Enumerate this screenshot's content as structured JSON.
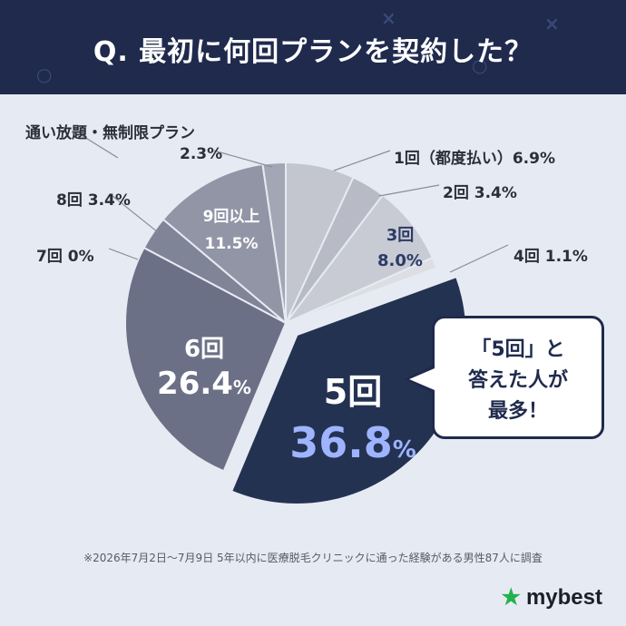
{
  "title": "Q. 最初に何回プランを契約した？",
  "chart_data": {
    "type": "pie",
    "start_angle_deg": 0,
    "slices": [
      {
        "label": "1回（都度払い）",
        "value": 6.9,
        "color": "#c3c6cf",
        "explode": false
      },
      {
        "label": "2回",
        "value": 3.4,
        "color": "#b8bbc5",
        "explode": false
      },
      {
        "label": "3回",
        "value": 8.0,
        "color": "#c8cbd3",
        "explode": false
      },
      {
        "label": "4回",
        "value": 1.1,
        "color": "#dcdee3",
        "explode": false
      },
      {
        "label": "5回",
        "value": 36.8,
        "color": "#243252",
        "explode": true
      },
      {
        "label": "6回",
        "value": 26.4,
        "color": "#6b7086",
        "explode": false
      },
      {
        "label": "7回",
        "value": 0,
        "color": "#6b7086",
        "explode": false
      },
      {
        "label": "8回",
        "value": 3.4,
        "color": "#7f8497",
        "explode": false
      },
      {
        "label": "9回以上",
        "value": 11.5,
        "color": "#9295a6",
        "explode": false
      },
      {
        "label": "通い放題・無制限プラン",
        "value": 2.3,
        "color": "#a3a6b4",
        "explode": false
      }
    ]
  },
  "labels": {
    "outside": {
      "plan_unlimited": "通い放題・無制限プラン",
      "plan_unlimited_pct": "2.3%",
      "once": "1回（都度払い）6.9%",
      "twice": "2回 3.4%",
      "four": "4回 1.1%",
      "eight": "8回 3.4%",
      "seven": "7回 0%"
    },
    "inside": {
      "nine_name": "9回以上",
      "nine_pct": "11.5%",
      "three_name": "3回",
      "three_pct": "8.0%",
      "six_name": "6回",
      "six_pct": "26.4",
      "six_unit": "%",
      "five_name": "5回",
      "five_pct": "36.8",
      "five_unit": "%"
    }
  },
  "callout": {
    "line1": "「5回」と",
    "line2": "答えた人が",
    "line3": "最多！"
  },
  "footnote": "※2026年7月2日〜7月9日 5年以内に医療脱毛クリニックに通った経験がある男性87人に調査",
  "logo": "mybest",
  "colors": {
    "header_bg": "#1f2a4d",
    "background": "#e6ebf3",
    "accent_blue": "#9fb4ff",
    "logo_star": "#23b14d"
  }
}
